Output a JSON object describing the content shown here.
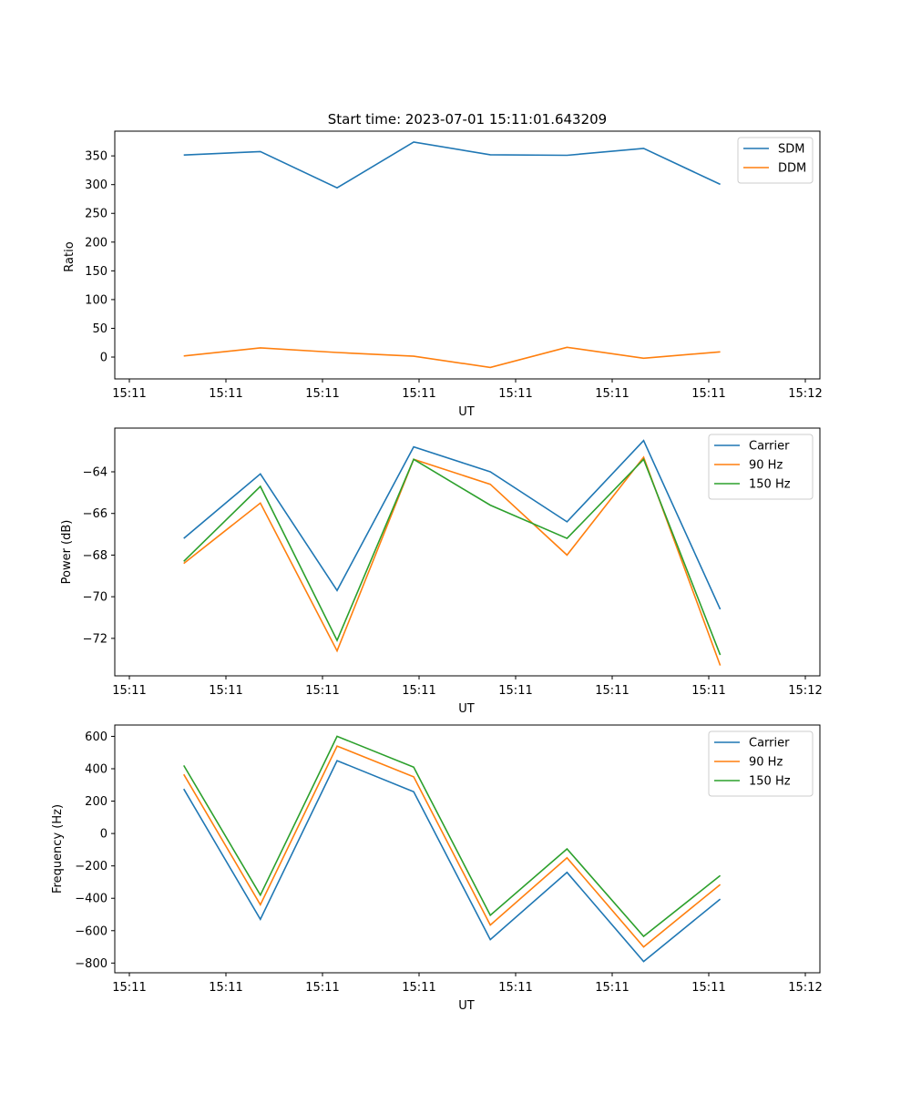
{
  "title": "Start time: 2023-07-01 15:11:01.643209",
  "colors": {
    "blue": "#1f77b4",
    "orange": "#ff7f0e",
    "green": "#2ca02c"
  },
  "chart_data": [
    {
      "type": "line",
      "title": "Start time: 2023-07-01 15:11:01.643209",
      "xlabel": "UT",
      "ylabel": "Ratio",
      "xticks": [
        "15:11",
        "15:11",
        "15:11",
        "15:11",
        "15:11",
        "15:11",
        "15:11",
        "15:12"
      ],
      "xlim": [
        -0.9,
        8.3
      ],
      "x": [
        0,
        1,
        2,
        3,
        4,
        5,
        6,
        7
      ],
      "ylim": [
        -38,
        393
      ],
      "yticks": [
        0,
        50,
        100,
        150,
        200,
        250,
        300,
        350
      ],
      "ytick_labels": [
        "0",
        "50",
        "100",
        "150",
        "200",
        "250",
        "300",
        "350"
      ],
      "legend_location": "upper right",
      "series": [
        {
          "name": "SDM",
          "color": "blue",
          "values": [
            351.5,
            357.5,
            294.5,
            374,
            352,
            351,
            363,
            300.5
          ]
        },
        {
          "name": "DDM",
          "color": "orange",
          "values": [
            2,
            16,
            8,
            1.5,
            -18,
            17,
            -2,
            9
          ]
        }
      ]
    },
    {
      "type": "line",
      "xlabel": "UT",
      "ylabel": "Power (dB)",
      "xticks": [
        "15:11",
        "15:11",
        "15:11",
        "15:11",
        "15:11",
        "15:11",
        "15:11",
        "15:12"
      ],
      "xlim": [
        -0.9,
        8.3
      ],
      "x": [
        0,
        1,
        2,
        3,
        4,
        5,
        6,
        7
      ],
      "ylim": [
        -73.8,
        -61.9
      ],
      "yticks": [
        -72,
        -70,
        -68,
        -66,
        -64
      ],
      "ytick_labels": [
        "−72",
        "−70",
        "−68",
        "−66",
        "−64"
      ],
      "legend_location": "upper right",
      "series": [
        {
          "name": "Carrier",
          "color": "blue",
          "values": [
            -67.2,
            -64.1,
            -69.7,
            -62.8,
            -64.0,
            -66.4,
            -62.5,
            -70.6
          ]
        },
        {
          "name": "90 Hz",
          "color": "orange",
          "values": [
            -68.4,
            -65.5,
            -72.6,
            -63.4,
            -64.6,
            -68.0,
            -63.3,
            -73.3
          ]
        },
        {
          "name": "150 Hz",
          "color": "green",
          "values": [
            -68.3,
            -64.7,
            -72.1,
            -63.4,
            -65.6,
            -67.2,
            -63.4,
            -72.8
          ]
        }
      ]
    },
    {
      "type": "line",
      "xlabel": "UT",
      "ylabel": "Frequency (Hz)",
      "xticks": [
        "15:11",
        "15:11",
        "15:11",
        "15:11",
        "15:11",
        "15:11",
        "15:11",
        "15:12"
      ],
      "xlim": [
        -0.9,
        8.3
      ],
      "x": [
        0,
        1,
        2,
        3,
        4,
        5,
        6,
        7
      ],
      "ylim": [
        -860,
        670
      ],
      "yticks": [
        -800,
        -600,
        -400,
        -200,
        0,
        200,
        400,
        600
      ],
      "ytick_labels": [
        "−800",
        "−600",
        "−400",
        "−200",
        "0",
        "200",
        "400",
        "600"
      ],
      "legend_location": "upper right",
      "series": [
        {
          "name": "Carrier",
          "color": "blue",
          "values": [
            275,
            -530,
            450,
            258,
            -655,
            -240,
            -790,
            -405
          ]
        },
        {
          "name": "90 Hz",
          "color": "orange",
          "values": [
            365,
            -440,
            540,
            350,
            -565,
            -150,
            -700,
            -315
          ]
        },
        {
          "name": "150 Hz",
          "color": "green",
          "values": [
            420,
            -380,
            600,
            410,
            -505,
            -95,
            -635,
            -260
          ]
        }
      ]
    }
  ]
}
